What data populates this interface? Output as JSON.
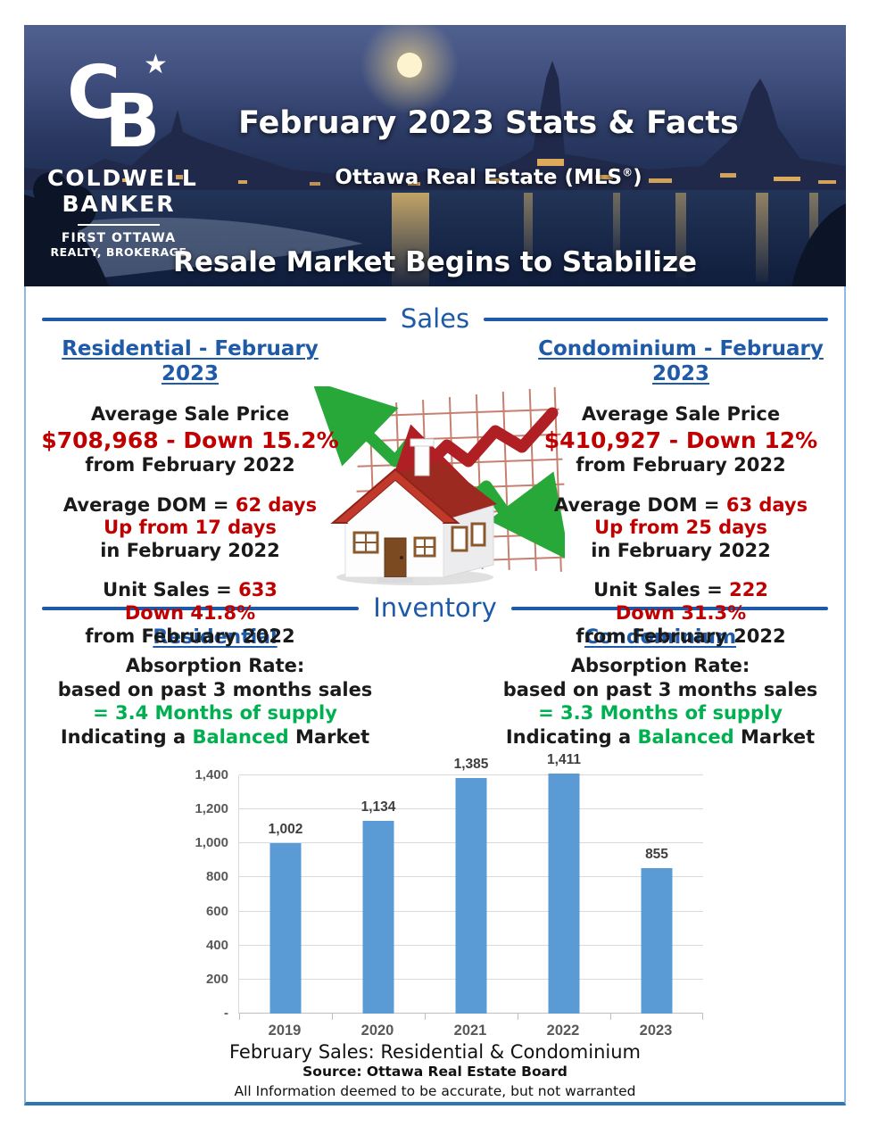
{
  "header": {
    "logo": {
      "mark_c": "C",
      "mark_b": "B",
      "star": "★",
      "name_line1": "COLDWELL",
      "name_line2": "BANKER",
      "sub_line1": "FIRST OTTAWA",
      "sub_line2": "REALTY, BROKERAGE"
    },
    "title": "February 2023 Stats & Facts",
    "subtitle_pre": "Ottawa Real Estate (MLS",
    "subtitle_sup": "®",
    "subtitle_post": ")",
    "banner": "Resale Market Begins to Stabilize"
  },
  "sales": {
    "label": "Sales",
    "residential": {
      "heading": "Residential - February 2023",
      "price_label": "Average Sale Price",
      "price_value": "$708,968 - Down 15.2%",
      "price_sub": "from February 2022",
      "dom_label": "Average DOM = ",
      "dom_value": "62 days",
      "dom_change": "Up from 17 days",
      "dom_sub": "in February 2022",
      "units_label": "Unit Sales = ",
      "units_value": "633",
      "units_change": "Down 41.8%",
      "units_sub": "from February 2022"
    },
    "condominium": {
      "heading": "Condominium - February 2023",
      "price_label": "Average Sale Price",
      "price_value": "$410,927 - Down 12%",
      "price_sub": "from February 2022",
      "dom_label": "Average DOM = ",
      "dom_value": "63 days",
      "dom_change": "Up from 25 days",
      "dom_sub": "in February 2022",
      "units_label": "Unit Sales = ",
      "units_value": "222",
      "units_change": "Down 31.3%",
      "units_sub": "from February 2022"
    }
  },
  "inventory": {
    "label": "Inventory",
    "residential": {
      "heading": "Residential",
      "rate_label": "Absorption Rate:",
      "rate_basis": "based on past 3 months sales",
      "supply_line": "= 3.4 Months of supply",
      "market_pre": "Indicating a ",
      "market_highlight": "Balanced",
      "market_post": " Market"
    },
    "condominium": {
      "heading": "Condominium",
      "rate_label": "Absorption Rate:",
      "rate_basis": "based on past 3 months sales",
      "supply_line": "= 3.3 Months of supply",
      "market_pre": "Indicating a ",
      "market_highlight": "Balanced",
      "market_post": " Market"
    }
  },
  "chart_data": {
    "type": "bar",
    "title": "February Sales: Residential & Condominium",
    "categories": [
      "2019",
      "2020",
      "2021",
      "2022",
      "2023"
    ],
    "values": [
      1002,
      1134,
      1385,
      1411,
      855
    ],
    "value_labels": [
      "1,002",
      "1,134",
      "1,385",
      "1,411",
      "855"
    ],
    "y_ticks": [
      {
        "value": 1400,
        "label": "1,400"
      },
      {
        "value": 1200,
        "label": "1,200"
      },
      {
        "value": 1000,
        "label": "1,000"
      },
      {
        "value": 800,
        "label": "800"
      },
      {
        "value": 600,
        "label": "600"
      },
      {
        "value": 400,
        "label": "400"
      },
      {
        "value": 200,
        "label": "200"
      },
      {
        "value": 0,
        "label": "-"
      }
    ],
    "ylim": [
      0,
      1400
    ],
    "grid": true,
    "legend": "none",
    "bar_color": "#5B9BD5",
    "xlabel": "",
    "ylabel": ""
  },
  "caption": {
    "title": "February Sales: Residential & Condominium",
    "source": "Source: Ottawa Real Estate Board",
    "disclaimer": "All Information deemed to be accurate, but not warranted"
  },
  "colors": {
    "accent_blue": "#1E5AA8",
    "negative_red": "#C00000",
    "positive_green": "#00B050",
    "bar_blue": "#5B9BD5",
    "box_border_light": "#8FB9E2",
    "box_border_bottom": "#2E75B6"
  }
}
